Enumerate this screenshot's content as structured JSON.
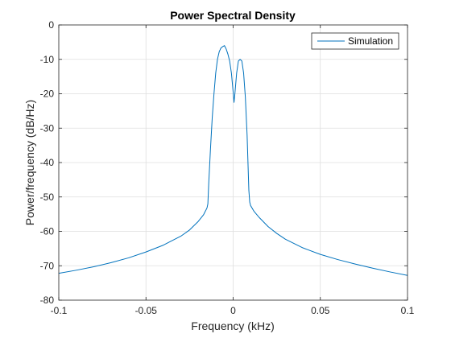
{
  "chart_data": {
    "type": "line",
    "title": "Power Spectral Density",
    "xlabel": "Frequency (kHz)",
    "ylabel": "Power/frequency (dB/Hz)",
    "xlim": [
      -0.1,
      0.1
    ],
    "ylim": [
      -80,
      0
    ],
    "xticks": [
      -0.1,
      -0.05,
      0,
      0.05,
      0.1
    ],
    "xtick_labels": [
      "-0.1",
      "-0.05",
      "0",
      "0.05",
      "0.1"
    ],
    "yticks": [
      0,
      -10,
      -20,
      -30,
      -40,
      -50,
      -60,
      -70,
      -80
    ],
    "ytick_labels": [
      "0",
      "-10",
      "-20",
      "-30",
      "-40",
      "-50",
      "-60",
      "-70",
      "-80"
    ],
    "grid": true,
    "legend_position": "top-right",
    "series": [
      {
        "name": "Simulation",
        "color": "#0072BD",
        "x": [
          -0.1,
          -0.09,
          -0.08,
          -0.07,
          -0.06,
          -0.05,
          -0.04,
          -0.03,
          -0.025,
          -0.02,
          -0.017,
          -0.015,
          -0.0145,
          -0.014,
          -0.013,
          -0.012,
          -0.011,
          -0.01,
          -0.009,
          -0.008,
          -0.007,
          -0.006,
          -0.005,
          -0.004,
          -0.003,
          -0.002,
          -0.001,
          0,
          0.0005,
          0.001,
          0.002,
          0.003,
          0.004,
          0.005,
          0.006,
          0.007,
          0.008,
          0.0085,
          0.009,
          0.0095,
          0.01,
          0.012,
          0.015,
          0.02,
          0.025,
          0.03,
          0.04,
          0.05,
          0.06,
          0.07,
          0.08,
          0.09,
          0.1
        ],
        "y": [
          -72.2,
          -71.3,
          -70.3,
          -69.1,
          -67.7,
          -66.0,
          -64.0,
          -61.4,
          -59.6,
          -57.1,
          -55.2,
          -53.2,
          -52.0,
          -46.0,
          -36.0,
          -27.0,
          -20.0,
          -14.0,
          -10.0,
          -7.8,
          -6.7,
          -6.3,
          -6.0,
          -7.0,
          -8.5,
          -10.5,
          -14.0,
          -19.5,
          -22.5,
          -20.0,
          -14.0,
          -10.5,
          -10.0,
          -10.5,
          -14.0,
          -21.0,
          -32.0,
          -40.0,
          -48.0,
          -51.5,
          -52.5,
          -54.2,
          -56.0,
          -58.6,
          -60.6,
          -62.3,
          -64.8,
          -66.7,
          -68.2,
          -69.5,
          -70.7,
          -71.8,
          -72.8
        ]
      }
    ]
  }
}
